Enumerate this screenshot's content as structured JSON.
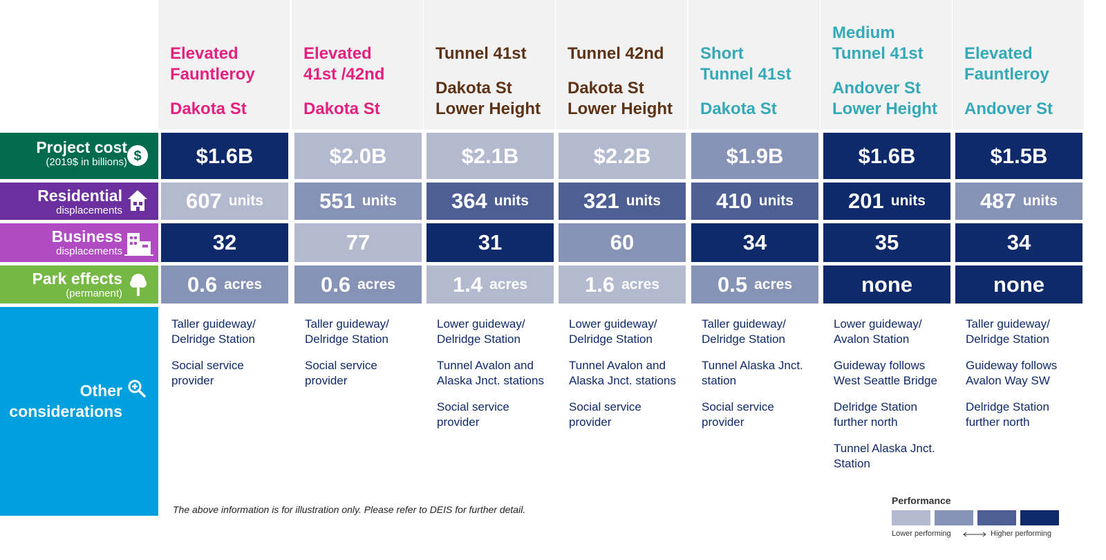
{
  "columns": [
    {
      "lines": [
        "Elevated",
        "Fauntleroy",
        "",
        "Dakota St"
      ],
      "color": "#e6207f"
    },
    {
      "lines": [
        "Elevated",
        "41st /42nd",
        "",
        "Dakota St"
      ],
      "color": "#e6207f"
    },
    {
      "lines": [
        "Tunnel 41st",
        "",
        "Dakota St",
        "Lower Height"
      ],
      "color": "#5c3316"
    },
    {
      "lines": [
        "Tunnel 42nd",
        "",
        "Dakota St",
        "Lower Height"
      ],
      "color": "#5c3316"
    },
    {
      "lines": [
        "Short",
        "Tunnel 41st",
        "",
        "Dakota St"
      ],
      "color": "#34a9b7"
    },
    {
      "lines": [
        "Medium",
        "Tunnel 41st",
        "",
        "Andover St",
        "Lower Height"
      ],
      "color": "#34a9b7"
    },
    {
      "lines": [
        "Elevated",
        "Fauntleroy",
        "",
        "Andover St"
      ],
      "color": "#34a9b7"
    }
  ],
  "rows": {
    "project_cost": {
      "label": "Project cost",
      "sublabel": "(2019$ in billions)",
      "color": "#006b4f",
      "icon": "dollar-icon",
      "cells": [
        {
          "value": "$1.6B",
          "unit": "",
          "level": 4
        },
        {
          "value": "$2.0B",
          "unit": "",
          "level": 1
        },
        {
          "value": "$2.1B",
          "unit": "",
          "level": 1
        },
        {
          "value": "$2.2B",
          "unit": "",
          "level": 1
        },
        {
          "value": "$1.9B",
          "unit": "",
          "level": 2
        },
        {
          "value": "$1.6B",
          "unit": "",
          "level": 4
        },
        {
          "value": "$1.5B",
          "unit": "",
          "level": 4
        }
      ]
    },
    "residential": {
      "label": "Residential",
      "sublabel": "displacements",
      "color": "#6b2fa0",
      "icon": "house-icon",
      "cells": [
        {
          "value": "607",
          "unit": "units",
          "level": 1
        },
        {
          "value": "551",
          "unit": "units",
          "level": 2
        },
        {
          "value": "364",
          "unit": "units",
          "level": 3
        },
        {
          "value": "321",
          "unit": "units",
          "level": 3
        },
        {
          "value": "410",
          "unit": "units",
          "level": 3
        },
        {
          "value": "201",
          "unit": "units",
          "level": 4
        },
        {
          "value": "487",
          "unit": "units",
          "level": 2
        }
      ]
    },
    "business": {
      "label": "Business",
      "sublabel": "displacements",
      "color": "#b04bc4",
      "icon": "building-icon",
      "cells": [
        {
          "value": "32",
          "unit": "",
          "level": 4
        },
        {
          "value": "77",
          "unit": "",
          "level": 1
        },
        {
          "value": "31",
          "unit": "",
          "level": 4
        },
        {
          "value": "60",
          "unit": "",
          "level": 2
        },
        {
          "value": "34",
          "unit": "",
          "level": 4
        },
        {
          "value": "35",
          "unit": "",
          "level": 4
        },
        {
          "value": "34",
          "unit": "",
          "level": 4
        }
      ]
    },
    "park": {
      "label": "Park effects",
      "sublabel": "(permanent)",
      "color": "#75b843",
      "icon": "tree-icon",
      "cells": [
        {
          "value": "0.6",
          "unit": "acres",
          "level": 2
        },
        {
          "value": "0.6",
          "unit": "acres",
          "level": 2
        },
        {
          "value": "1.4",
          "unit": "acres",
          "level": 1
        },
        {
          "value": "1.6",
          "unit": "acres",
          "level": 1
        },
        {
          "value": "0.5",
          "unit": "acres",
          "level": 2
        },
        {
          "value": "none",
          "unit": "",
          "level": 4
        },
        {
          "value": "none",
          "unit": "",
          "level": 4
        }
      ]
    }
  },
  "other": {
    "label_line1": "Other",
    "label_line2": "considerations",
    "color": "#00a0df",
    "icon": "magnify-plus-icon",
    "notes": [
      [
        "Taller guideway/\nDelridge Station",
        "Social service\nprovider"
      ],
      [
        "Taller guideway/\nDelridge Station",
        "Social service\nprovider"
      ],
      [
        "Lower guideway/\nDelridge Station",
        "Tunnel Avalon and\nAlaska Jnct. stations",
        "Social service\nprovider"
      ],
      [
        "Lower guideway/\nDelridge Station",
        "Tunnel Avalon and\nAlaska Jnct. stations",
        "Social service\nprovider"
      ],
      [
        "Taller guideway/\nDelridge Station",
        "Tunnel Alaska Jnct.\nstation",
        "Social service\nprovider"
      ],
      [
        "Lower guideway/\nAvalon Station",
        "Guideway follows\nWest Seattle Bridge",
        "Delridge Station\nfurther north",
        "Tunnel Alaska Jnct.\nStation"
      ],
      [
        "Taller guideway/\nDelridge Station",
        "Guideway follows\nAvalon Way SW",
        "Delridge Station\nfurther north"
      ]
    ]
  },
  "footnote": "The above information is for illustration only. Please refer to DEIS for further detail.",
  "legend": {
    "title": "Performance",
    "lower": "Lower performing",
    "higher": "Higher performing",
    "colors": [
      "#b3bacf",
      "#8693b6",
      "#4d5f95",
      "#0f2a6b"
    ]
  }
}
